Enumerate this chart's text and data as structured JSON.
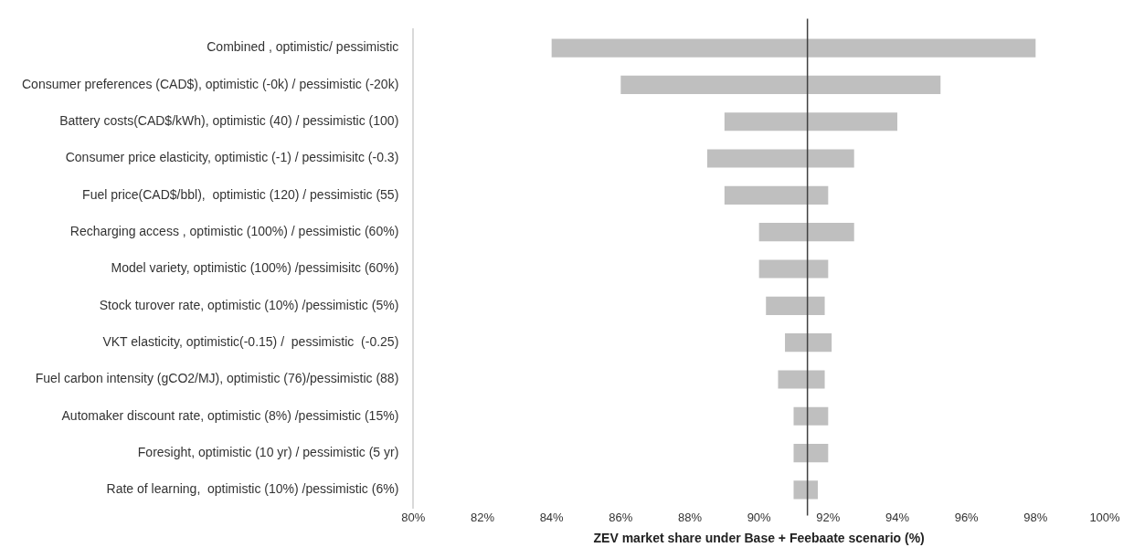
{
  "chart_data": {
    "type": "bar",
    "orientation": "horizontal",
    "xlabel": "ZEV market share under Base + Feebaate scenario (%)",
    "categories": [
      "Combined , optimistic/ pessimistic",
      "Consumer preferences (CAD$), optimistic (-0k) / pessimistic (-20k)",
      "Battery costs(CAD$/kWh), optimistic (40) / pessimistic (100)",
      "Consumer price elasticity, optimistic (-1) / pessimisitc (-0.3)",
      "Fuel price(CAD$/bbl),  optimistic (120) / pessimistic (55)",
      "Recharging access , optimistic (100%) / pessimistic (60%)",
      "Model variety, optimistic (100%) /pessimisitc (60%)",
      "Stock turover rate, optimistic (10%) /pessimistic (5%)",
      "VKT elasticity, optimistic(-0.15) /  pessimistic  (-0.25)",
      "Fuel carbon intensity (gCO2/MJ), optimistic (76)/pessimistic (88)",
      "Automaker discount rate, optimistic (8%) /pessimistic (15%)",
      "Foresight, optimistic (10 yr) / pessimistic (5 yr)",
      "Rate of learning,  optimistic (10%) /pessimistic (6%)"
    ],
    "base": [
      84,
      86,
      89,
      88.5,
      89,
      90,
      90,
      90.2,
      90.75,
      90.55,
      91,
      91,
      91
    ],
    "values": [
      14,
      9.25,
      5,
      4.25,
      3,
      2.75,
      2,
      1.7,
      1.35,
      1.35,
      1,
      1,
      0.7
    ],
    "color": "#bfbfbf",
    "xlim": [
      80,
      100
    ],
    "xticks": [
      {
        "value": 80,
        "label": "80%"
      },
      {
        "value": 82,
        "label": "82%"
      },
      {
        "value": 84,
        "label": "84%"
      },
      {
        "value": 86,
        "label": "86%"
      },
      {
        "value": 88,
        "label": "88%"
      },
      {
        "value": 90,
        "label": "90%"
      },
      {
        "value": 92,
        "label": "92%"
      },
      {
        "value": 94,
        "label": "94%"
      },
      {
        "value": 96,
        "label": "96%"
      },
      {
        "value": 98,
        "label": "98%"
      },
      {
        "value": 100,
        "label": "100%"
      }
    ],
    "ref_lines": [
      {
        "axis": "x",
        "value": 91.4,
        "color": "#404040"
      }
    ],
    "grid": false,
    "legend": false
  }
}
